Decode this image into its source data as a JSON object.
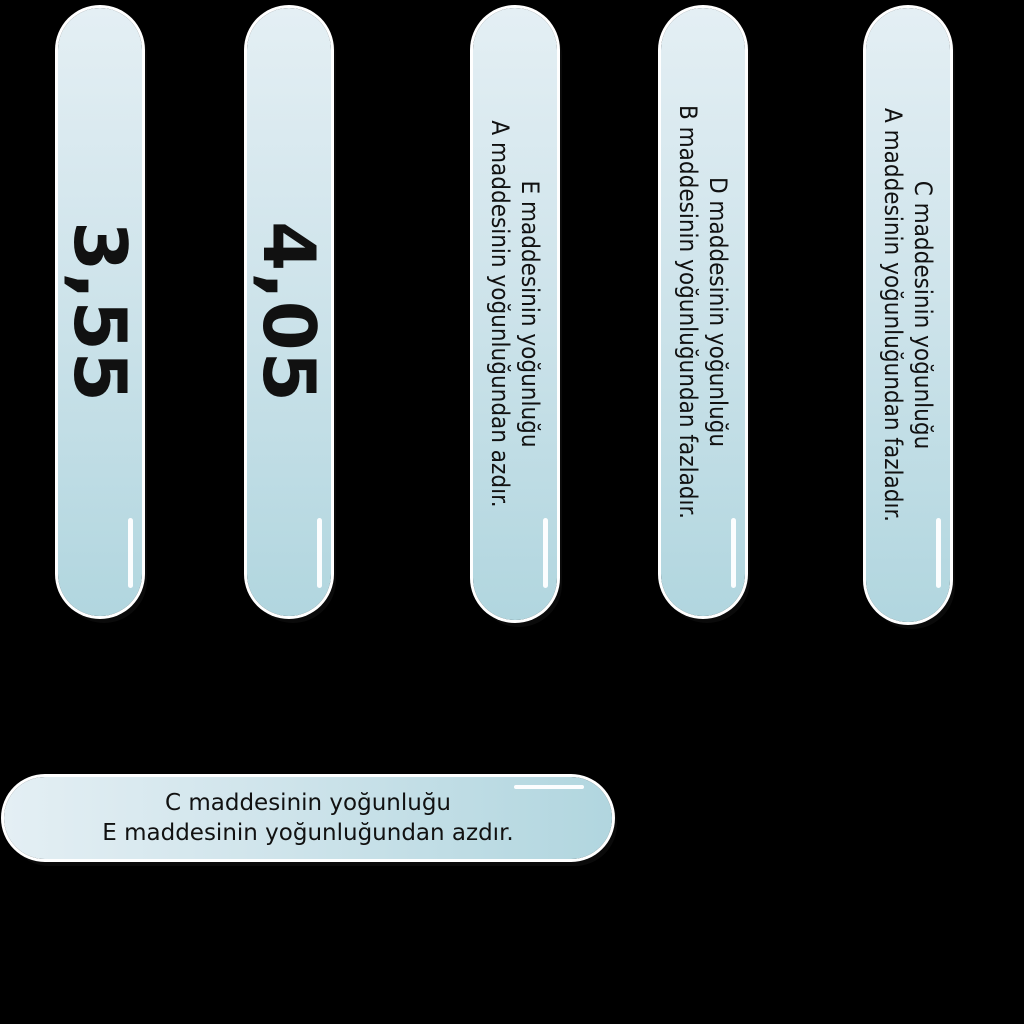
{
  "sticks": [
    {
      "id": "stick-1",
      "text": "3,55"
    },
    {
      "id": "stick-2",
      "text": "4,05"
    },
    {
      "id": "stick-3",
      "line1": "E maddesinin yoğunluğu",
      "line2": "A maddesinin yoğunluğundan azdır."
    },
    {
      "id": "stick-4",
      "line1": "D maddesinin yoğunluğu",
      "line2": "B maddesinin yoğunluğundan fazladır."
    },
    {
      "id": "stick-5",
      "line1": "C maddesinin yoğunluğu",
      "line2": "A maddesinin yoğunluğundan fazladır."
    },
    {
      "id": "stick-6",
      "line1": "C maddesinin yoğunluğu",
      "line2": "E maddesinin yoğunluğundan azdır."
    }
  ]
}
